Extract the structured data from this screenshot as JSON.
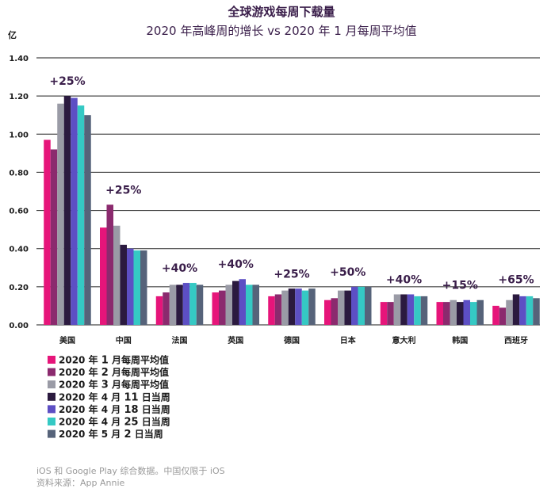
{
  "chart_data": {
    "type": "bar",
    "title": "全球游戏每周下载量",
    "subtitle": "2020 年高峰周的增长 vs 2020 年 1 月每周平均值",
    "ylabel": "亿",
    "ylim": [
      0,
      1.4
    ],
    "yticks": [
      "0.00",
      "0.20",
      "0.40",
      "0.60",
      "0.80",
      "1.00",
      "1.20",
      "1.40"
    ],
    "ytick_values": [
      0,
      0.2,
      0.4,
      0.6,
      0.8,
      1.0,
      1.2,
      1.4
    ],
    "grid": true,
    "legend_position": "bottom-left",
    "categories": [
      "美国",
      "中国",
      "法国",
      "英国",
      "德国",
      "日本",
      "意大利",
      "韩国",
      "西班牙"
    ],
    "growth_labels": [
      "+25%",
      "+25%",
      "+40%",
      "+40%",
      "+25%",
      "+50%",
      "+40%",
      "+15%",
      "+65%"
    ],
    "series": [
      {
        "name": "2020 年 1 月每周平均值",
        "color": "#e6157a",
        "values": [
          0.97,
          0.51,
          0.15,
          0.17,
          0.15,
          0.13,
          0.12,
          0.12,
          0.1
        ]
      },
      {
        "name": "2020 年 2 月每周平均值",
        "color": "#8b2a6e",
        "values": [
          0.92,
          0.63,
          0.17,
          0.18,
          0.16,
          0.14,
          0.12,
          0.12,
          0.09
        ]
      },
      {
        "name": "2020 年 3 月每周平均值",
        "color": "#9a9ba6",
        "values": [
          1.16,
          0.52,
          0.21,
          0.21,
          0.18,
          0.18,
          0.16,
          0.13,
          0.13
        ]
      },
      {
        "name": "2020 年 4 月 11 日当周",
        "color": "#2b1a3f",
        "values": [
          1.2,
          0.42,
          0.21,
          0.23,
          0.19,
          0.18,
          0.16,
          0.12,
          0.16
        ]
      },
      {
        "name": "2020 年 4 月 18 日当周",
        "color": "#5d4fc4",
        "values": [
          1.19,
          0.4,
          0.22,
          0.24,
          0.19,
          0.2,
          0.16,
          0.13,
          0.15
        ]
      },
      {
        "name": "2020 年 4 月 25 日当周",
        "color": "#35c9c4",
        "values": [
          1.15,
          0.39,
          0.22,
          0.21,
          0.18,
          0.2,
          0.15,
          0.12,
          0.15
        ]
      },
      {
        "name": "2020 年 5 月 2 日当周",
        "color": "#56637a",
        "values": [
          1.1,
          0.39,
          0.21,
          0.21,
          0.19,
          0.2,
          0.15,
          0.13,
          0.14
        ]
      }
    ],
    "legend_entries": [
      {
        "pre": "2020 年 ",
        "num": "1",
        "post": " 月每周平均值"
      },
      {
        "pre": "2020 年 ",
        "num": "2",
        "post": " 月每周平均值"
      },
      {
        "pre": "2020 年 ",
        "num": "3",
        "post": " 月每周平均值"
      },
      {
        "pre": "2020 年 4 月 ",
        "num": "11",
        "post": " 日当周"
      },
      {
        "pre": "2020 年 4 月 ",
        "num": "18",
        "post": " 日当周"
      },
      {
        "pre": "2020 年 4 月 ",
        "num": "25",
        "post": " 日当周"
      },
      {
        "pre": "2020 年 5 月 ",
        "num": "2",
        "post": " 日当周"
      }
    ]
  },
  "footnotes": {
    "line1": "iOS 和 Google Play 综合数据。中国仅限于 iOS",
    "line2": "资料来源：App Annie"
  }
}
